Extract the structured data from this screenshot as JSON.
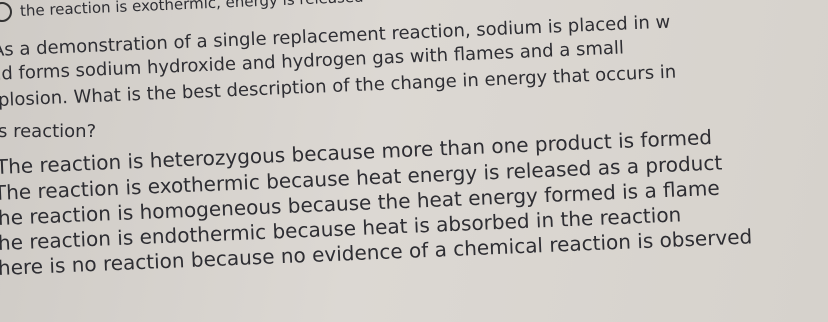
{
  "top_option": "the reaction is exothermic, energy is released",
  "question": {
    "lines": [
      "As a demonstration of a single replacement reaction, sodium is placed in w",
      "nd forms sodium hydroxide and hydrogen gas with flames and a small",
      "plosion. What is the best description of the change in energy that occurs in",
      "s reaction?"
    ]
  },
  "options": [
    "The reaction is heterozygous because more than one product is formed",
    "The reaction is exothermic because heat energy is released as a product",
    "he reaction is homogeneous because the heat energy formed is a flame",
    "he reaction is endothermic because heat is absorbed in the reaction",
    "here is no reaction because no evidence of a chemical reaction is observed"
  ]
}
